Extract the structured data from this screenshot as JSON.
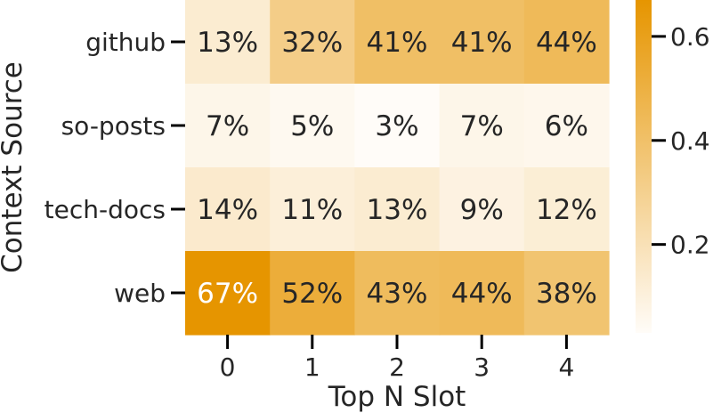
{
  "chart_data": {
    "type": "heatmap",
    "title": "",
    "xlabel": "Top N Slot",
    "ylabel": "Context Source",
    "x_categories": [
      "0",
      "1",
      "2",
      "3",
      "4"
    ],
    "y_categories": [
      "github",
      "so-posts",
      "tech-docs",
      "web"
    ],
    "values": [
      [
        0.13,
        0.32,
        0.41,
        0.41,
        0.44
      ],
      [
        0.07,
        0.05,
        0.03,
        0.07,
        0.06
      ],
      [
        0.14,
        0.11,
        0.13,
        0.09,
        0.12
      ],
      [
        0.67,
        0.52,
        0.43,
        0.44,
        0.38
      ]
    ],
    "annotations": [
      [
        "13%",
        "32%",
        "41%",
        "41%",
        "44%"
      ],
      [
        "7%",
        "5%",
        "3%",
        "7%",
        "6%"
      ],
      [
        "14%",
        "11%",
        "13%",
        "9%",
        "12%"
      ],
      [
        "67%",
        "52%",
        "43%",
        "44%",
        "38%"
      ]
    ],
    "colorbar": {
      "min": 0.03,
      "max": 0.67,
      "ticks": [
        0.2,
        0.4,
        0.6
      ],
      "tick_labels": [
        "0.2",
        "0.4",
        "0.6"
      ],
      "color_low": "#fffcf8",
      "color_high": "#e69500"
    },
    "grid": false,
    "legend": "colorbar-right"
  }
}
